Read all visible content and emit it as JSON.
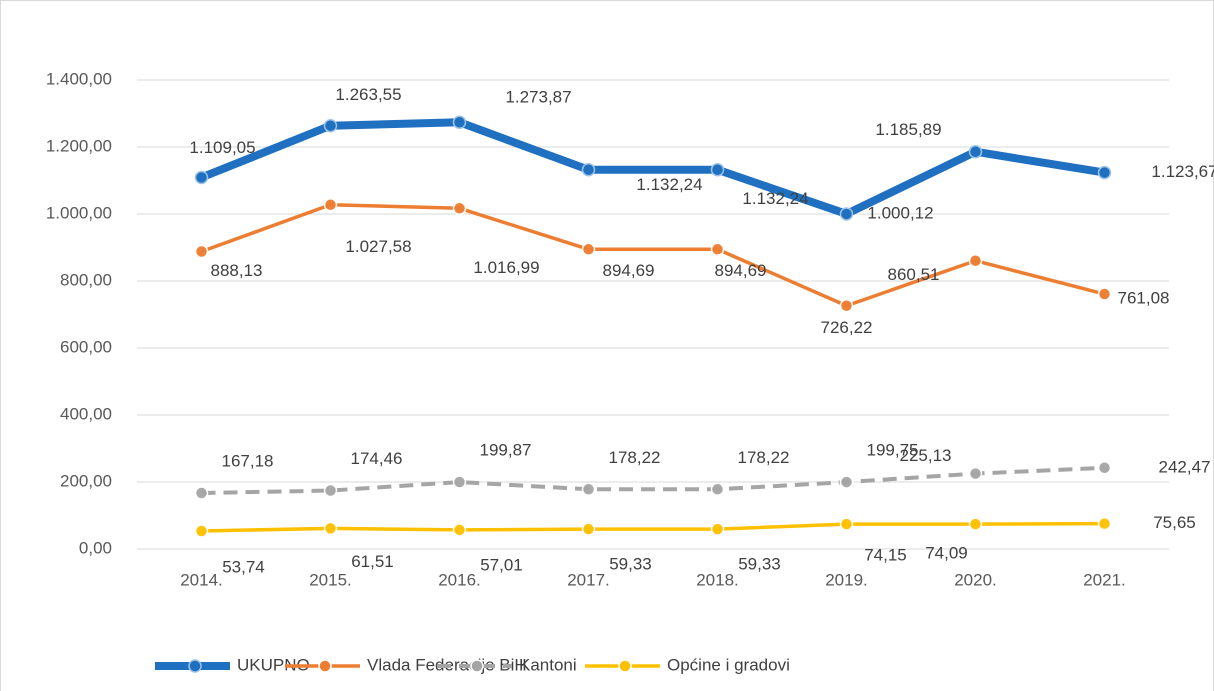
{
  "chart_data": {
    "type": "line",
    "categories": [
      "2014.",
      "2015.",
      "2016.",
      "2017.",
      "2018.",
      "2019.",
      "2020.",
      "2021."
    ],
    "ylim": [
      0,
      1400
    ],
    "yticks": [
      {
        "value": 0,
        "label": "0,00"
      },
      {
        "value": 200,
        "label": "200,00"
      },
      {
        "value": 400,
        "label": "400,00"
      },
      {
        "value": 600,
        "label": "600,00"
      },
      {
        "value": 800,
        "label": "800,00"
      },
      {
        "value": 1000,
        "label": "1.000,00"
      },
      {
        "value": 1200,
        "label": "1.200,00"
      },
      {
        "value": 1400,
        "label": "1.400,00"
      }
    ],
    "grid": true,
    "legend": "bottom",
    "series": [
      {
        "name": "UKUPNO",
        "color": "#1f70c1",
        "values": [
          1109.05,
          1263.55,
          1273.87,
          1132.24,
          1132.24,
          1000.12,
          1185.89,
          1123.67
        ],
        "value_labels": [
          "1.109,05",
          "1.263,55",
          "1.273,87",
          "1.132,24",
          "1.132,24",
          "1.000,12",
          "1.185,89",
          "1.123,67"
        ]
      },
      {
        "name": "Vlada Federacije BiH",
        "color": "#ed7d31",
        "values": [
          888.13,
          1027.58,
          1016.99,
          894.69,
          894.69,
          726.22,
          860.51,
          761.08
        ],
        "value_labels": [
          "888,13",
          "1.027,58",
          "1.016,99",
          "894,69",
          "894,69",
          "726,22",
          "860,51",
          "761,08"
        ]
      },
      {
        "name": "Kantoni",
        "color": "#a5a5a5",
        "dashed": true,
        "values": [
          167.18,
          174.46,
          199.87,
          178.22,
          178.22,
          199.75,
          225.13,
          242.47
        ],
        "value_labels": [
          "167,18",
          "174,46",
          "199,87",
          "178,22",
          "178,22",
          "199,75",
          "225,13",
          "242,47"
        ]
      },
      {
        "name": "Općine i gradovi",
        "color": "#ffc000",
        "values": [
          53.74,
          61.51,
          57.01,
          59.33,
          59.33,
          74.15,
          74.09,
          75.65
        ],
        "value_labels": [
          "53,74",
          "61,51",
          "57,01",
          "59,33",
          "59,33",
          "74,15",
          "74,09",
          "75,65"
        ]
      }
    ]
  }
}
